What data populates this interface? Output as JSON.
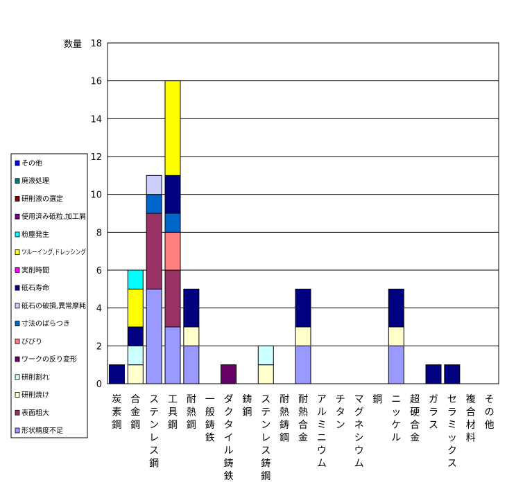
{
  "chart_data": {
    "type": "bar",
    "stacked": true,
    "ylabel": "数量",
    "ylim": [
      0,
      18
    ],
    "yticks": [
      0,
      2,
      4,
      6,
      8,
      10,
      12,
      14,
      16,
      18
    ],
    "grid": true,
    "legend_position": "left",
    "categories": [
      "炭素鋼",
      "合金鋼",
      "ステンレス鋼",
      "工具鋼",
      "耐熱鋼",
      "一般鋳鉄",
      "ダクタイル鋳鉄",
      "鋳鋼",
      "ステンレス鋳鋼",
      "耐熱鋳鋼",
      "耐熱合金",
      "アルミニウム",
      "チタン",
      "マグネシウム",
      "銅",
      "ニッケル",
      "超硬合金",
      "ガラス",
      "セラミックス",
      "複合材料",
      "その他"
    ],
    "series": [
      {
        "name": "形状精度不足",
        "color": "#9999ff",
        "values": [
          0,
          0,
          5,
          3,
          2,
          0,
          0,
          0,
          0,
          0,
          2,
          0,
          0,
          0,
          0,
          2,
          0,
          0,
          0,
          0,
          0
        ]
      },
      {
        "name": "表面粗大",
        "color": "#993366",
        "values": [
          0,
          0,
          4,
          3,
          0,
          0,
          0,
          0,
          0,
          0,
          0,
          0,
          0,
          0,
          0,
          0,
          0,
          0,
          0,
          0,
          0
        ]
      },
      {
        "name": "研削焼け",
        "color": "#ffffcc",
        "values": [
          0,
          1,
          0,
          0,
          1,
          0,
          0,
          0,
          1,
          0,
          1,
          0,
          0,
          0,
          0,
          1,
          0,
          0,
          0,
          0,
          0
        ]
      },
      {
        "name": "研削割れ",
        "color": "#ccffff",
        "values": [
          0,
          1,
          0,
          0,
          0,
          0,
          0,
          0,
          1,
          0,
          0,
          0,
          0,
          0,
          0,
          0,
          0,
          0,
          0,
          0,
          0
        ]
      },
      {
        "name": "ワークの反り変形",
        "color": "#660066",
        "values": [
          0,
          0,
          0,
          0,
          0,
          0,
          1,
          0,
          0,
          0,
          0,
          0,
          0,
          0,
          0,
          0,
          0,
          0,
          0,
          0,
          0
        ]
      },
      {
        "name": "びびり",
        "color": "#ff8080",
        "values": [
          0,
          0,
          0,
          2,
          0,
          0,
          0,
          0,
          0,
          0,
          0,
          0,
          0,
          0,
          0,
          0,
          0,
          0,
          0,
          0,
          0
        ]
      },
      {
        "name": "寸法のばらつき",
        "color": "#0066cc",
        "values": [
          0,
          0,
          1,
          1,
          0,
          0,
          0,
          0,
          0,
          0,
          0,
          0,
          0,
          0,
          0,
          0,
          0,
          0,
          0,
          0,
          0
        ]
      },
      {
        "name": "砥石の破損,異常摩耗",
        "color": "#ccccff",
        "values": [
          0,
          0,
          1,
          0,
          0,
          0,
          0,
          0,
          0,
          0,
          0,
          0,
          0,
          0,
          0,
          0,
          0,
          0,
          0,
          0,
          0
        ]
      },
      {
        "name": "砥石寿命",
        "color": "#000080",
        "values": [
          1,
          1,
          0,
          2,
          2,
          0,
          0,
          0,
          0,
          0,
          2,
          0,
          0,
          0,
          0,
          2,
          0,
          1,
          1,
          0,
          0
        ]
      },
      {
        "name": "実削時間",
        "color": "#ff00ff",
        "values": [
          0,
          0,
          0,
          0,
          0,
          0,
          0,
          0,
          0,
          0,
          0,
          0,
          0,
          0,
          0,
          0,
          0,
          0,
          0,
          0,
          0
        ]
      },
      {
        "name": "ツルーイング,ドレッシング",
        "color": "#ffff00",
        "values": [
          0,
          2,
          0,
          5,
          0,
          0,
          0,
          0,
          0,
          0,
          0,
          0,
          0,
          0,
          0,
          0,
          0,
          0,
          0,
          0,
          0
        ]
      },
      {
        "name": "粉塵発生",
        "color": "#00ffff",
        "values": [
          0,
          1,
          0,
          0,
          0,
          0,
          0,
          0,
          0,
          0,
          0,
          0,
          0,
          0,
          0,
          0,
          0,
          0,
          0,
          0,
          0
        ]
      },
      {
        "name": "使用済み砥粒,加工屑",
        "color": "#800080",
        "values": [
          0,
          0,
          0,
          0,
          0,
          0,
          0,
          0,
          0,
          0,
          0,
          0,
          0,
          0,
          0,
          0,
          0,
          0,
          0,
          0,
          0
        ]
      },
      {
        "name": "研削液の選定",
        "color": "#800000",
        "values": [
          0,
          0,
          0,
          0,
          0,
          0,
          0,
          0,
          0,
          0,
          0,
          0,
          0,
          0,
          0,
          0,
          0,
          0,
          0,
          0,
          0
        ]
      },
      {
        "name": "廃液処理",
        "color": "#008080",
        "values": [
          0,
          0,
          0,
          0,
          0,
          0,
          0,
          0,
          0,
          0,
          0,
          0,
          0,
          0,
          0,
          0,
          0,
          0,
          0,
          0,
          0
        ]
      },
      {
        "name": "その他",
        "color": "#0000ff",
        "values": [
          0,
          0,
          0,
          0,
          0,
          0,
          0,
          0,
          0,
          0,
          0,
          0,
          0,
          0,
          0,
          0,
          0,
          0,
          0,
          0,
          0
        ]
      }
    ]
  }
}
